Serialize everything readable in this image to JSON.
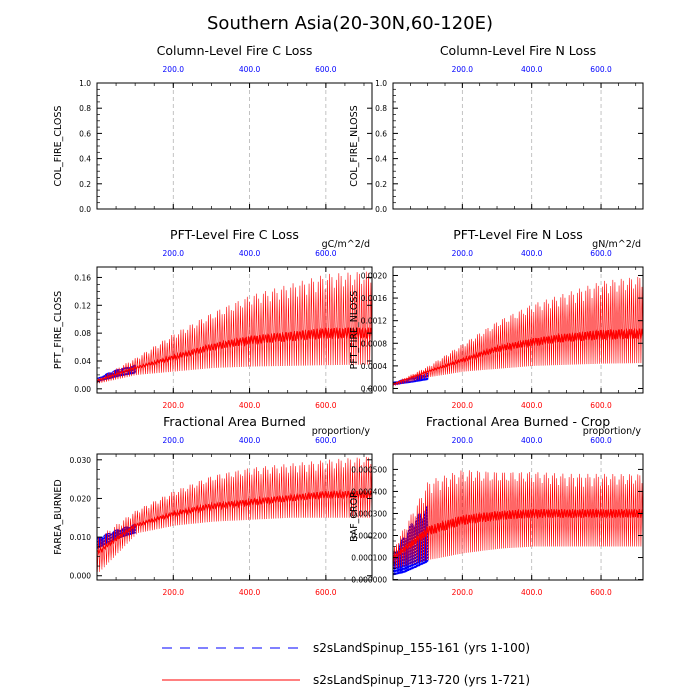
{
  "title": "Southern Asia(20-30N,60-120E)",
  "colors": {
    "blue": "#0000ff",
    "red": "#ff0000",
    "grid": "#b4b4b4",
    "axis": "#000000"
  },
  "legend": [
    {
      "label": "s2sLandSpinup_155-161 (yrs 1-100)",
      "color": "#0000ff",
      "style": "dashed"
    },
    {
      "label": "s2sLandSpinup_713-720 (yrs 1-721)",
      "color": "#ff0000",
      "style": "solid"
    }
  ],
  "chart_data": [
    {
      "type": "line",
      "id": "c1",
      "title": "Column-Level Fire C Loss",
      "ylabel": "COL_FIRE_CLOSS",
      "units": "",
      "xlim": [
        0,
        721
      ],
      "ylim": [
        0,
        1.0
      ],
      "yticks": [
        0.0,
        0.2,
        0.4,
        0.6,
        0.8,
        1.0
      ],
      "ytick_labels": [
        "0.0",
        "0.2",
        "0.4",
        "0.6",
        "0.8",
        "1.0"
      ],
      "xticks_top": [
        200,
        400,
        600
      ],
      "xticks_top_labels": [
        "200.0",
        "400.0",
        "600.0"
      ],
      "xticks_bottom": [],
      "xticks_bottom_labels": [],
      "series": []
    },
    {
      "type": "line",
      "id": "c2",
      "title": "Column-Level Fire N Loss",
      "ylabel": "COL_FIRE_NLOSS",
      "units": "",
      "xlim": [
        0,
        721
      ],
      "ylim": [
        0,
        1.0
      ],
      "yticks": [
        0.0,
        0.2,
        0.4,
        0.6,
        0.8,
        1.0
      ],
      "ytick_labels": [
        "0.0",
        "0.2",
        "0.4",
        "0.6",
        "0.8",
        "1.0"
      ],
      "xticks_top": [
        200,
        400,
        600
      ],
      "xticks_top_labels": [
        "200.0",
        "400.0",
        "600.0"
      ],
      "xticks_bottom": [],
      "xticks_bottom_labels": [],
      "series": []
    },
    {
      "type": "line",
      "id": "c3",
      "title": "PFT-Level Fire C Loss",
      "ylabel": "PFT_FIRE_CLOSS",
      "units": "gC/m^2/d",
      "xlim": [
        0,
        721
      ],
      "ylim": [
        -0.006,
        0.175
      ],
      "yticks": [
        0.0,
        0.04,
        0.08,
        0.12,
        0.16
      ],
      "ytick_labels": [
        "0.00",
        "0.04",
        "0.08",
        "0.12",
        "0.16"
      ],
      "xticks_top": [
        200,
        400,
        600
      ],
      "xticks_top_labels": [
        "200.0",
        "400.0",
        "600.0"
      ],
      "xticks_bottom": [
        200,
        400,
        600
      ],
      "xticks_bottom_labels": [
        "200.0",
        "400.0",
        "600.0"
      ],
      "series": [
        {
          "name": "s2sLandSpinup_155-161 (yrs 1-100)",
          "color": "blue",
          "x_range": [
            1,
            100
          ],
          "envelope": {
            "x": [
              1,
              30,
              60,
              100
            ],
            "low": [
              0.01,
              0.014,
              0.018,
              0.022
            ],
            "high": [
              0.016,
              0.024,
              0.03,
              0.035
            ]
          }
        },
        {
          "name": "s2sLandSpinup_713-720 (yrs 1-721)",
          "color": "red",
          "x_range": [
            1,
            721
          ],
          "envelope": {
            "x": [
              1,
              100,
              200,
              300,
              400,
              500,
              600,
              721
            ],
            "low": [
              0.008,
              0.02,
              0.025,
              0.03,
              0.032,
              0.033,
              0.034,
              0.035
            ],
            "high": [
              0.015,
              0.045,
              0.08,
              0.11,
              0.135,
              0.15,
              0.165,
              0.17
            ],
            "mean": [
              0.012,
              0.03,
              0.045,
              0.06,
              0.07,
              0.075,
              0.08,
              0.08
            ]
          }
        }
      ]
    },
    {
      "type": "line",
      "id": "c4",
      "title": "PFT-Level Fire N Loss",
      "ylabel": "PFT_FIRE_NLOSS",
      "units": "gN/m^2/d",
      "xlim": [
        0,
        721
      ],
      "ylim": [
        -8e-05,
        0.00215
      ],
      "yticks": [
        0.0,
        0.0004,
        0.0008,
        0.0012,
        0.0016,
        0.002
      ],
      "ytick_labels": [
        "0.0000",
        "0.0004",
        "0.0008",
        "0.0012",
        "0.0016",
        "0.0020"
      ],
      "xticks_top": [
        200,
        400,
        600
      ],
      "xticks_top_labels": [
        "200.0",
        "400.0",
        "600.0"
      ],
      "xticks_bottom": [
        200,
        400,
        600
      ],
      "xticks_bottom_labels": [
        "200.0",
        "400.0",
        "600.0"
      ],
      "series": [
        {
          "name": "s2sLandSpinup_155-161 (yrs 1-100)",
          "color": "blue",
          "x_range": [
            1,
            100
          ],
          "envelope": {
            "x": [
              1,
              50,
              100
            ],
            "low": [
              6e-05,
              0.0001,
              0.00015
            ],
            "high": [
              0.00012,
              0.0002,
              0.00028
            ]
          }
        },
        {
          "name": "s2sLandSpinup_713-720 (yrs 1-721)",
          "color": "red",
          "x_range": [
            1,
            721
          ],
          "envelope": {
            "x": [
              1,
              100,
              200,
              300,
              400,
              500,
              600,
              721
            ],
            "low": [
              5e-05,
              0.0002,
              0.0003,
              0.00035,
              0.0004,
              0.00042,
              0.00044,
              0.00045
            ],
            "high": [
              0.0001,
              0.0004,
              0.0008,
              0.0012,
              0.0015,
              0.0017,
              0.0019,
              0.002
            ],
            "mean": [
              8e-05,
              0.0003,
              0.0005,
              0.0007,
              0.00082,
              0.0009,
              0.00095,
              0.00097
            ]
          }
        }
      ]
    },
    {
      "type": "line",
      "id": "c5",
      "title": "Fractional Area Burned",
      "ylabel": "FAREA_BURNED",
      "units": "proportion/y",
      "xlim": [
        0,
        721
      ],
      "ylim": [
        -0.0011,
        0.0315
      ],
      "yticks": [
        0.0,
        0.01,
        0.02,
        0.03
      ],
      "ytick_labels": [
        "0.000",
        "0.010",
        "0.020",
        "0.030"
      ],
      "xticks_top": [
        200,
        400,
        600
      ],
      "xticks_top_labels": [
        "200.0",
        "400.0",
        "600.0"
      ],
      "xticks_bottom": [
        200,
        400,
        600
      ],
      "xticks_bottom_labels": [
        "200.0",
        "400.0",
        "600.0"
      ],
      "series": [
        {
          "name": "s2sLandSpinup_155-161 (yrs 1-100)",
          "color": "blue",
          "x_range": [
            1,
            100
          ],
          "envelope": {
            "x": [
              1,
              50,
              100
            ],
            "low": [
              0.007,
              0.0095,
              0.011
            ],
            "high": [
              0.01,
              0.012,
              0.0135
            ]
          }
        },
        {
          "name": "s2sLandSpinup_713-720 (yrs 1-721)",
          "color": "red",
          "x_range": [
            1,
            721
          ],
          "envelope": {
            "x": [
              1,
              100,
              200,
              300,
              400,
              500,
              600,
              721
            ],
            "low": [
              0.001,
              0.011,
              0.013,
              0.014,
              0.0145,
              0.015,
              0.015,
              0.015
            ],
            "high": [
              0.01,
              0.017,
              0.022,
              0.026,
              0.028,
              0.029,
              0.03,
              0.031
            ],
            "mean": [
              0.006,
              0.013,
              0.016,
              0.018,
              0.019,
              0.02,
              0.021,
              0.021
            ]
          }
        }
      ]
    },
    {
      "type": "line",
      "id": "c6",
      "title": "Fractional Area Burned - Crop",
      "ylabel": "BAF_CROP",
      "units": "proportion/y",
      "xlim": [
        0,
        721
      ],
      "ylim": [
        -2e-06,
        0.00057
      ],
      "yticks": [
        0.0,
        0.0001,
        0.0002,
        0.0003,
        0.0004,
        0.0005
      ],
      "ytick_labels": [
        "0.000000",
        "0.000100",
        "0.000200",
        "0.000300",
        "0.000400",
        "0.000500"
      ],
      "xticks_top": [
        200,
        400,
        600
      ],
      "xticks_top_labels": [
        "200.0",
        "400.0",
        "600.0"
      ],
      "xticks_bottom": [
        200,
        400,
        600
      ],
      "xticks_bottom_labels": [
        "200.0",
        "400.0",
        "600.0"
      ],
      "series": [
        {
          "name": "s2sLandSpinup_155-161 (yrs 1-100)",
          "color": "blue",
          "x_range": [
            1,
            100
          ],
          "envelope": {
            "x": [
              1,
              30,
              60,
              100
            ],
            "low": [
              2e-05,
              3e-05,
              5e-05,
              8e-05
            ],
            "high": [
              0.00012,
              0.0002,
              0.00028,
              0.00034
            ]
          }
        },
        {
          "name": "s2sLandSpinup_713-720 (yrs 1-721)",
          "color": "red",
          "x_range": [
            1,
            721
          ],
          "envelope": {
            "x": [
              1,
              100,
              200,
              300,
              400,
              500,
              600,
              721
            ],
            "low": [
              5e-05,
              9e-05,
              0.00012,
              0.00014,
              0.00015,
              0.00015,
              0.00015,
              0.00015
            ],
            "high": [
              0.00015,
              0.00045,
              0.0005,
              0.00049,
              0.00049,
              0.00048,
              0.00048,
              0.00048
            ],
            "mean": [
              0.0001,
              0.00022,
              0.00027,
              0.00029,
              0.0003,
              0.0003,
              0.0003,
              0.0003
            ]
          }
        }
      ]
    }
  ]
}
